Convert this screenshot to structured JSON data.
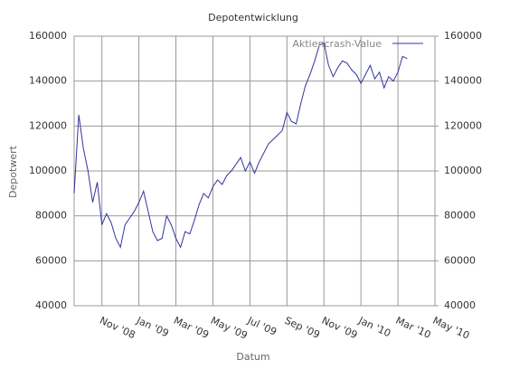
{
  "chart_data": {
    "type": "line",
    "title": "Depotentwicklung",
    "x_label": "Datum",
    "y_label": "Depotwert",
    "x": [
      9.5,
      9.75,
      10,
      10.25,
      10.5,
      10.75,
      11,
      11.25,
      11.5,
      11.75,
      12,
      12.25,
      12.5,
      12.75,
      13,
      13.25,
      13.5,
      13.75,
      14,
      14.25,
      14.5,
      14.75,
      15,
      15.25,
      15.5,
      15.75,
      16,
      16.25,
      16.5,
      16.75,
      17,
      17.25,
      17.5,
      17.75,
      18,
      18.25,
      18.5,
      18.75,
      19,
      19.25,
      19.5,
      19.75,
      20,
      20.25,
      20.5,
      20.75,
      21,
      21.25,
      21.5,
      21.75,
      22,
      22.25,
      22.5,
      22.75,
      23,
      23.25,
      23.5,
      23.75,
      24,
      24.25,
      24.5,
      24.75,
      25,
      25.25,
      25.5,
      25.75,
      26,
      26.25,
      26.5,
      26.75,
      27,
      27.25,
      27.5
    ],
    "series": [
      {
        "name": "Aktiencrash-Value",
        "color": "#3333a0",
        "values": [
          90000,
          125000,
          110000,
          100000,
          86000,
          95000,
          76000,
          81000,
          77000,
          70000,
          66000,
          76000,
          79000,
          82000,
          86000,
          91000,
          82000,
          73000,
          69000,
          70000,
          80000,
          76000,
          70000,
          66000,
          73000,
          72000,
          78000,
          85000,
          90000,
          88000,
          93000,
          96000,
          94000,
          98000,
          100000,
          103000,
          106000,
          100000,
          104000,
          99000,
          104000,
          108000,
          112000,
          114000,
          116000,
          118000,
          126000,
          122000,
          121000,
          130000,
          138000,
          143000,
          149000,
          156000,
          157000,
          147000,
          142000,
          146000,
          149000,
          148000,
          145000,
          143000,
          139000,
          143000,
          147000,
          141000,
          144000,
          137000,
          142000,
          140000,
          144000,
          151000,
          150000
        ]
      }
    ],
    "xlim": [
      9.5,
      29
    ],
    "xticks": [
      {
        "value": 11,
        "label": "Nov '08"
      },
      {
        "value": 13,
        "label": "Jan '09"
      },
      {
        "value": 15,
        "label": "Mar '09"
      },
      {
        "value": 17,
        "label": "May '09"
      },
      {
        "value": 19,
        "label": "Jul '09"
      },
      {
        "value": 21,
        "label": "Sep '09"
      },
      {
        "value": 23,
        "label": "Nov '09"
      },
      {
        "value": 25,
        "label": "Jan '10"
      },
      {
        "value": 27,
        "label": "Mar '10"
      },
      {
        "value": 29,
        "label": "May '10"
      }
    ],
    "ylim": [
      40000,
      160000
    ],
    "yticks": [
      40000,
      60000,
      80000,
      100000,
      120000,
      140000,
      160000
    ],
    "y2lim": [
      40000,
      160000
    ],
    "y2ticks": [
      40000,
      60000,
      80000,
      100000,
      120000,
      140000,
      160000
    ],
    "grid": true,
    "legend": "top-right"
  }
}
